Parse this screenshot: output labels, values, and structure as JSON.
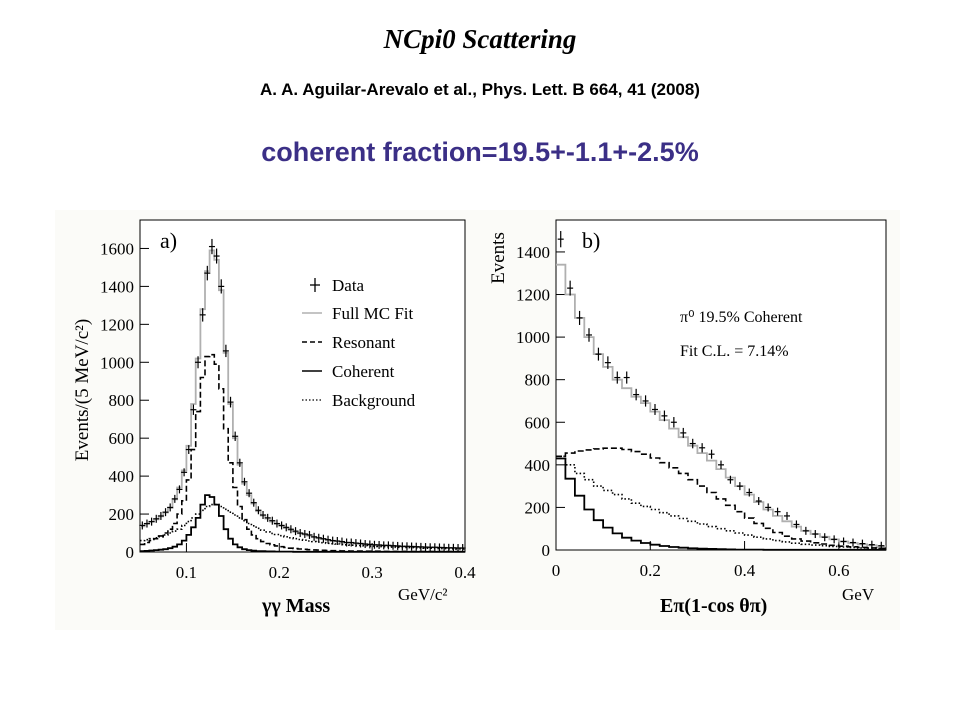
{
  "slide": {
    "title": "NCpi0 Scattering",
    "reference": "A. A. Aguilar-Arevalo et al., Phys. Lett. B 664, 41 (2008)",
    "result": "coherent fraction=19.5+-1.1+-2.5%",
    "result_color": "#3b2f86"
  },
  "chart_data": [
    {
      "type": "line",
      "panel_label": "a)",
      "xlabel": "γγ Mass",
      "xunit": "GeV/c²",
      "ylabel": "Events/(5 MeV/c²)",
      "xlim": [
        0.05,
        0.4
      ],
      "ylim": [
        0,
        1750
      ],
      "xticks": [
        0.1,
        0.2,
        0.3,
        0.4
      ],
      "yticks": [
        0,
        200,
        400,
        600,
        800,
        1000,
        1200,
        1400,
        1600
      ],
      "grid": false,
      "legend_position": "right",
      "legend": [
        "Data",
        "Full MC Fit",
        "Resonant",
        "Coherent",
        "Background"
      ],
      "x": [
        0.0525,
        0.0575,
        0.0625,
        0.0675,
        0.0725,
        0.0775,
        0.0825,
        0.0875,
        0.0925,
        0.0975,
        0.1025,
        0.1075,
        0.1125,
        0.1175,
        0.1225,
        0.1275,
        0.1325,
        0.1375,
        0.1425,
        0.1475,
        0.1525,
        0.1575,
        0.1625,
        0.1675,
        0.1725,
        0.1775,
        0.1825,
        0.1875,
        0.1925,
        0.1975,
        0.2025,
        0.2075,
        0.2125,
        0.2175,
        0.2225,
        0.2275,
        0.2325,
        0.2375,
        0.2425,
        0.2475,
        0.2525,
        0.2575,
        0.2625,
        0.2675,
        0.2725,
        0.2775,
        0.2825,
        0.2875,
        0.2925,
        0.2975,
        0.3025,
        0.3075,
        0.3125,
        0.3175,
        0.3225,
        0.3275,
        0.3325,
        0.3375,
        0.3425,
        0.3475,
        0.3525,
        0.3575,
        0.3625,
        0.3675,
        0.3725,
        0.3775,
        0.3825,
        0.3875,
        0.3925,
        0.3975
      ],
      "series": [
        {
          "name": "Data",
          "style": "points",
          "color": "#000000",
          "values": [
            140,
            150,
            160,
            175,
            190,
            210,
            235,
            280,
            330,
            420,
            540,
            750,
            1000,
            1250,
            1470,
            1610,
            1560,
            1400,
            1060,
            790,
            610,
            470,
            370,
            310,
            260,
            220,
            195,
            180,
            165,
            150,
            140,
            130,
            120,
            110,
            100,
            95,
            90,
            80,
            75,
            70,
            65,
            60,
            58,
            55,
            50,
            50,
            47,
            45,
            42,
            40,
            38,
            37,
            35,
            35,
            33,
            32,
            30,
            30,
            29,
            28,
            27,
            26,
            25,
            25,
            24,
            23,
            22,
            22,
            21,
            21
          ]
        },
        {
          "name": "Full MC Fit",
          "style": "solid",
          "color": "#b0b0b0",
          "values": [
            135,
            148,
            160,
            172,
            188,
            208,
            232,
            278,
            340,
            430,
            560,
            780,
            1020,
            1280,
            1480,
            1590,
            1540,
            1380,
            1050,
            780,
            600,
            460,
            360,
            300,
            255,
            215,
            192,
            176,
            160,
            148,
            138,
            126,
            116,
            106,
            98,
            92,
            86,
            78,
            72,
            68,
            63,
            59,
            56,
            52,
            49,
            48,
            45,
            43,
            41,
            39,
            37,
            36,
            34,
            33,
            32,
            31,
            29,
            28,
            28,
            27,
            26,
            25,
            24,
            24,
            23,
            22,
            21,
            21,
            20,
            20
          ]
        },
        {
          "name": "Resonant",
          "style": "dashed",
          "color": "#000000",
          "values": [
            40,
            50,
            60,
            70,
            85,
            100,
            120,
            150,
            200,
            270,
            380,
            540,
            740,
            920,
            1030,
            1040,
            990,
            860,
            650,
            470,
            340,
            240,
            170,
            120,
            90,
            70,
            55,
            45,
            38,
            32,
            28,
            24,
            20,
            18,
            16,
            14,
            12,
            11,
            10,
            9,
            8,
            7,
            7,
            6,
            6,
            5,
            5,
            5,
            4,
            4,
            4,
            4,
            3,
            3,
            3,
            3,
            3,
            3,
            2,
            2,
            2,
            2,
            2,
            2,
            2,
            2,
            2,
            2,
            2,
            2
          ]
        },
        {
          "name": "Coherent",
          "style": "solid",
          "color": "#000000",
          "values": [
            5,
            6,
            8,
            10,
            12,
            15,
            20,
            28,
            40,
            60,
            90,
            130,
            180,
            250,
            300,
            290,
            250,
            190,
            120,
            70,
            40,
            25,
            15,
            10,
            7,
            5,
            4,
            3,
            3,
            2,
            2,
            2,
            2,
            1,
            1,
            1,
            1,
            1,
            1,
            1,
            1,
            1,
            1,
            1,
            1,
            1,
            1,
            1,
            1,
            1,
            1,
            1,
            1,
            1,
            1,
            1,
            1,
            1,
            1,
            1,
            1,
            1,
            1,
            1,
            1,
            1,
            1,
            1,
            1,
            1
          ]
        },
        {
          "name": "Background",
          "style": "dotted",
          "color": "#000000",
          "values": [
            60,
            65,
            70,
            75,
            80,
            90,
            100,
            110,
            120,
            140,
            160,
            180,
            200,
            220,
            240,
            250,
            250,
            240,
            225,
            210,
            195,
            180,
            165,
            150,
            138,
            125,
            115,
            106,
            98,
            92,
            86,
            80,
            75,
            70,
            66,
            62,
            58,
            55,
            52,
            49,
            46,
            44,
            42,
            40,
            38,
            36,
            35,
            34,
            33,
            31,
            30,
            29,
            28,
            27,
            26,
            25,
            24,
            24,
            23,
            22,
            21,
            20,
            20,
            19,
            18,
            18,
            17,
            17,
            16,
            16
          ]
        }
      ]
    },
    {
      "type": "line",
      "panel_label": "b)",
      "xlabel": "Eπ(1-cos θπ)",
      "xunit": "GeV",
      "ylabel": "Events",
      "xlim": [
        0,
        0.7
      ],
      "ylim": [
        0,
        1550
      ],
      "xticks": [
        0,
        0.2,
        0.4,
        0.6
      ],
      "yticks": [
        0,
        200,
        400,
        600,
        800,
        1000,
        1200,
        1400
      ],
      "grid": false,
      "annotations": [
        "π⁰ 19.5% Coherent",
        "Fit C.L. = 7.14%"
      ],
      "x": [
        0.01,
        0.03,
        0.05,
        0.07,
        0.09,
        0.11,
        0.13,
        0.15,
        0.17,
        0.19,
        0.21,
        0.23,
        0.25,
        0.27,
        0.29,
        0.31,
        0.33,
        0.35,
        0.37,
        0.39,
        0.41,
        0.43,
        0.45,
        0.47,
        0.49,
        0.51,
        0.53,
        0.55,
        0.57,
        0.59,
        0.61,
        0.63,
        0.65,
        0.67,
        0.69
      ],
      "series": [
        {
          "name": "Data",
          "style": "points",
          "color": "#000000",
          "values": [
            1460,
            1230,
            1090,
            1010,
            920,
            880,
            810,
            810,
            730,
            700,
            660,
            630,
            600,
            550,
            500,
            480,
            450,
            400,
            330,
            300,
            270,
            230,
            200,
            180,
            160,
            120,
            90,
            75,
            60,
            50,
            40,
            35,
            30,
            25,
            20
          ]
        },
        {
          "name": "Full MC Fit",
          "style": "solid",
          "color": "#b0b0b0",
          "values": [
            1340,
            1200,
            1090,
            1000,
            920,
            860,
            800,
            760,
            720,
            690,
            650,
            610,
            570,
            530,
            490,
            455,
            420,
            380,
            340,
            300,
            260,
            225,
            190,
            160,
            135,
            110,
            90,
            75,
            62,
            50,
            40,
            33,
            27,
            22,
            18
          ]
        },
        {
          "name": "Resonant",
          "style": "dashed",
          "color": "#000000",
          "values": [
            440,
            455,
            465,
            470,
            475,
            478,
            478,
            472,
            462,
            450,
            432,
            410,
            386,
            360,
            330,
            300,
            270,
            240,
            210,
            180,
            150,
            125,
            102,
            82,
            65,
            52,
            42,
            34,
            28,
            22,
            18,
            15,
            12,
            10,
            8
          ]
        },
        {
          "name": "Coherent",
          "style": "solid",
          "color": "#000000",
          "values": [
            430,
            335,
            255,
            190,
            140,
            105,
            78,
            58,
            44,
            33,
            25,
            19,
            14,
            11,
            8,
            6,
            5,
            4,
            3,
            2,
            2,
            2,
            1,
            1,
            1,
            1,
            1,
            1,
            1,
            1,
            1,
            1,
            1,
            1,
            1
          ]
        },
        {
          "name": "Background",
          "style": "dotted",
          "color": "#000000",
          "values": [
            440,
            400,
            360,
            330,
            300,
            280,
            260,
            240,
            220,
            205,
            190,
            175,
            160,
            148,
            135,
            122,
            110,
            100,
            90,
            80,
            70,
            60,
            52,
            44,
            38,
            32,
            27,
            23,
            20,
            17,
            14,
            12,
            10,
            9,
            8
          ]
        }
      ]
    }
  ]
}
